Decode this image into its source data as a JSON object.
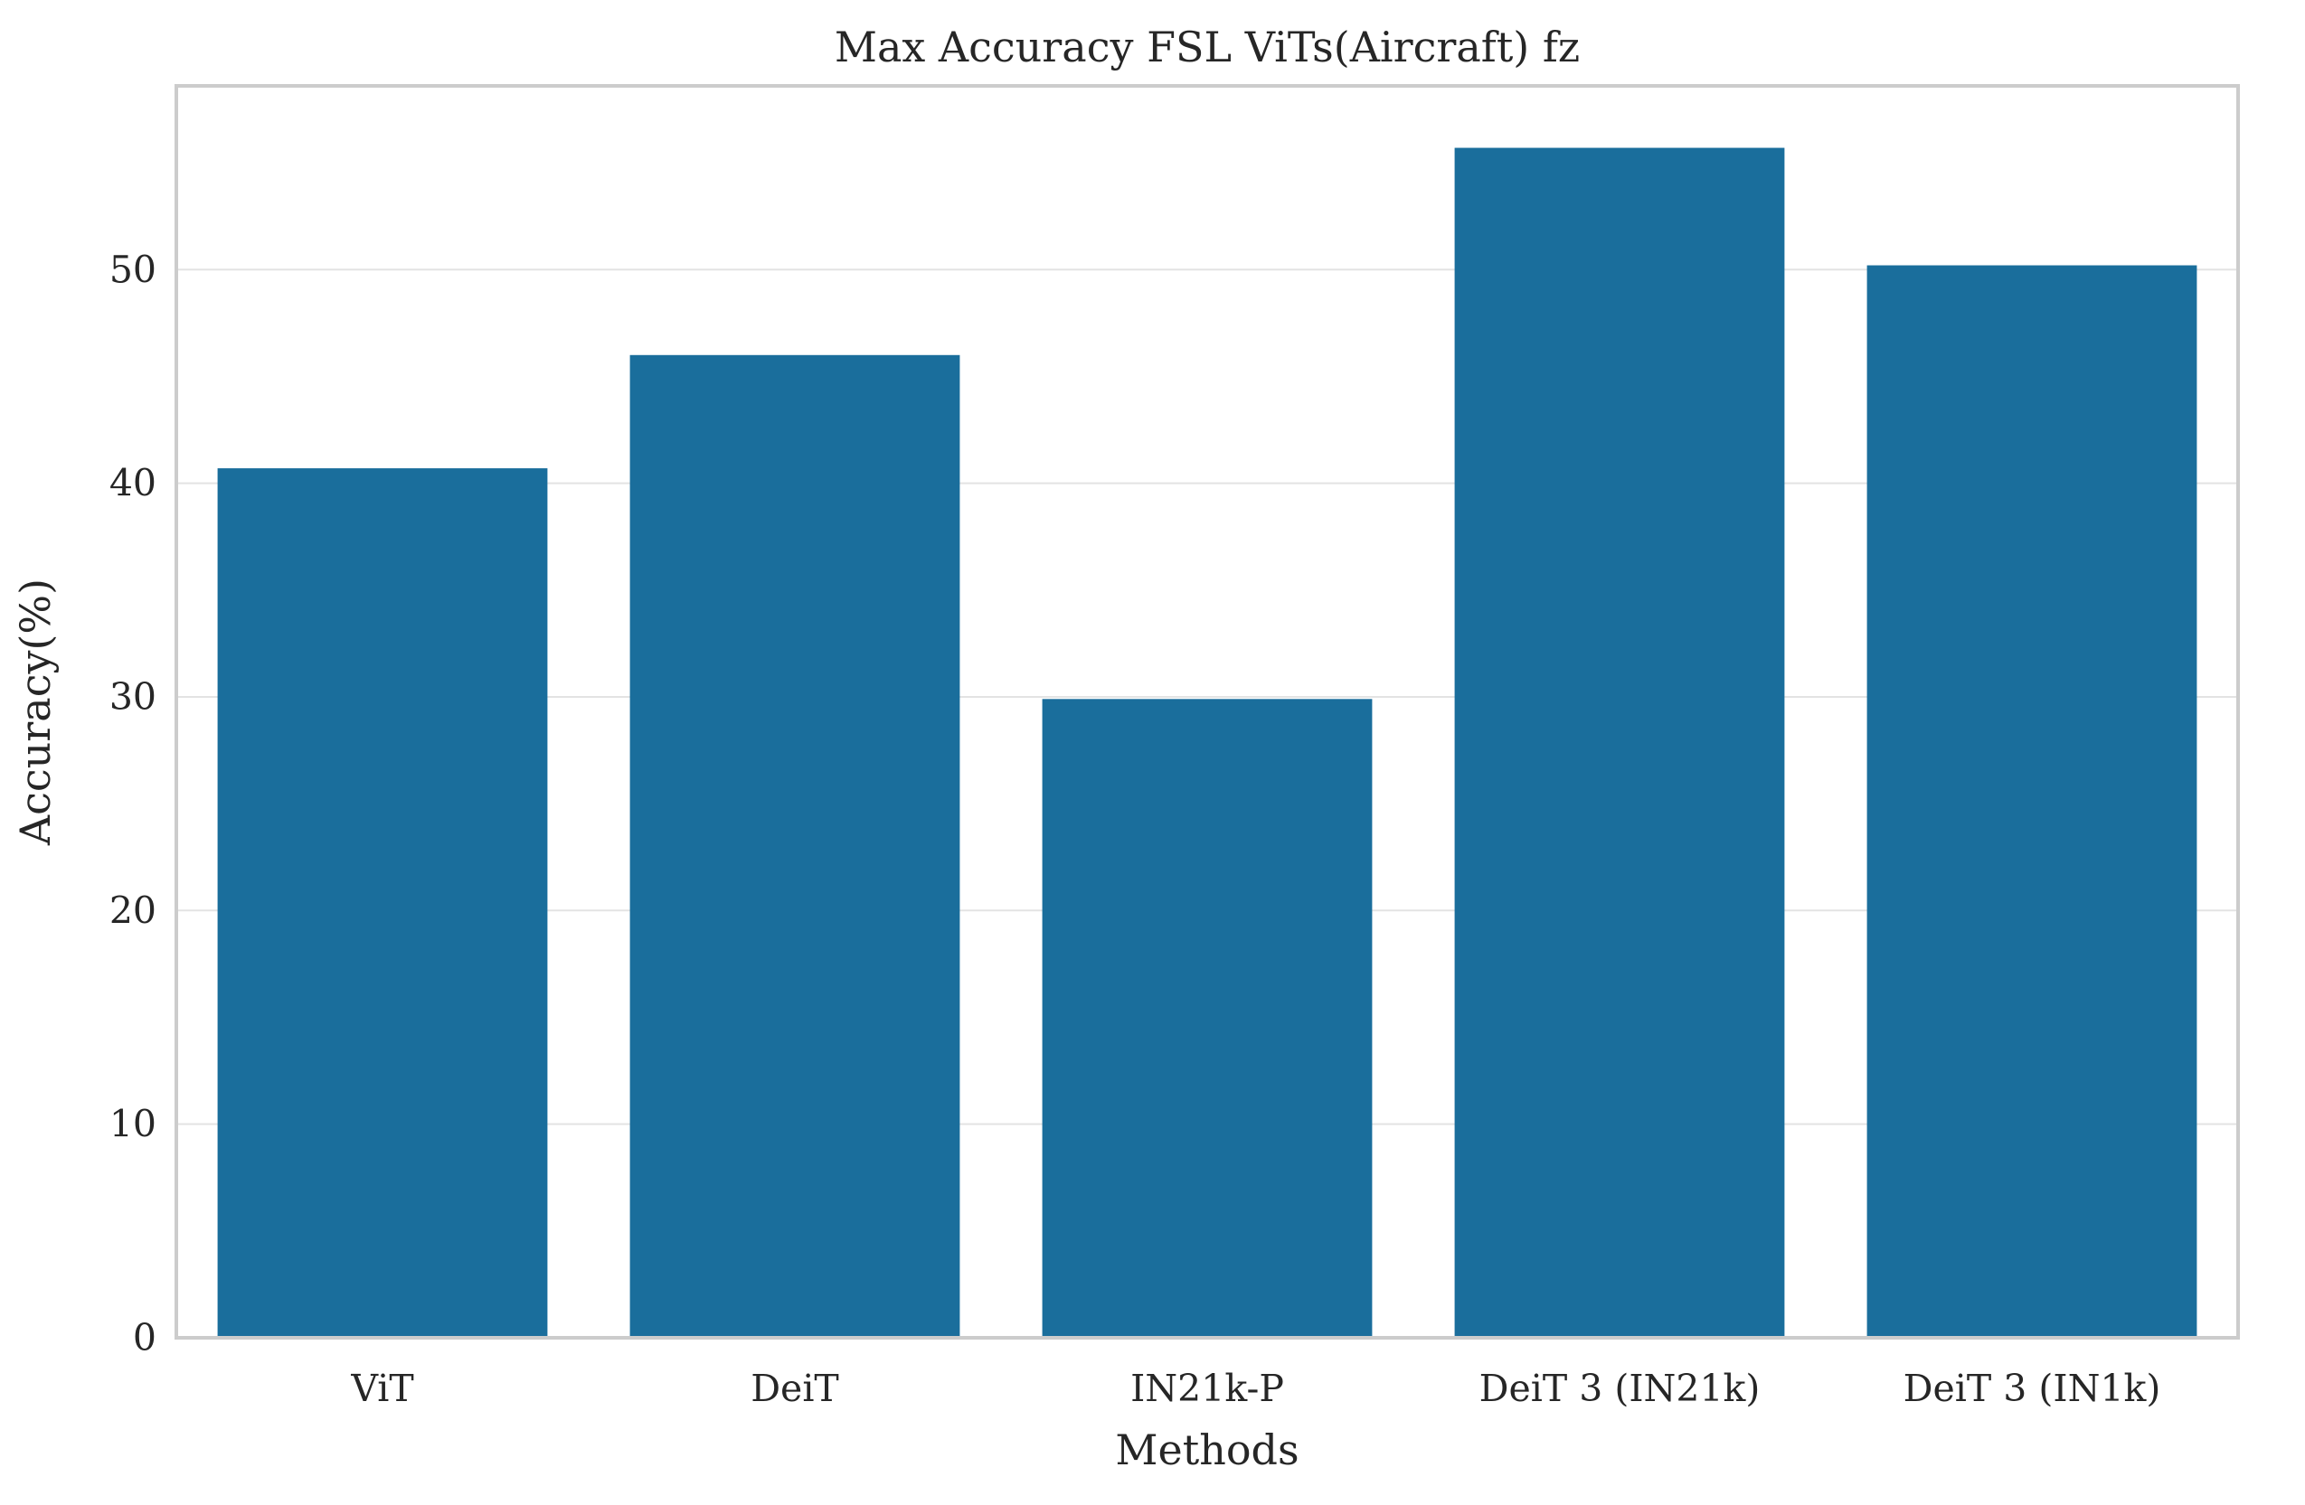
{
  "chart_data": {
    "type": "bar",
    "title": "Max Accuracy FSL ViTs(Aircraft) fz",
    "xlabel": "Methods",
    "ylabel": "Accuracy(%)",
    "categories": [
      "ViT",
      "DeiT",
      "IN21k-P",
      "DeiT 3 (IN21k)",
      "DeiT 3 (IN1k)"
    ],
    "values": [
      40.7,
      46.0,
      29.9,
      55.7,
      50.2
    ],
    "ylim": [
      0,
      58.6
    ],
    "yticks": [
      0,
      10,
      20,
      30,
      40,
      50
    ],
    "ytick_labels": [
      "0",
      "10",
      "20",
      "30",
      "40",
      "50"
    ],
    "grid": "horizontal",
    "bar_color": "#1a6e9c",
    "grid_color": "#e3e3e3",
    "spine_color": "#cccccc"
  }
}
